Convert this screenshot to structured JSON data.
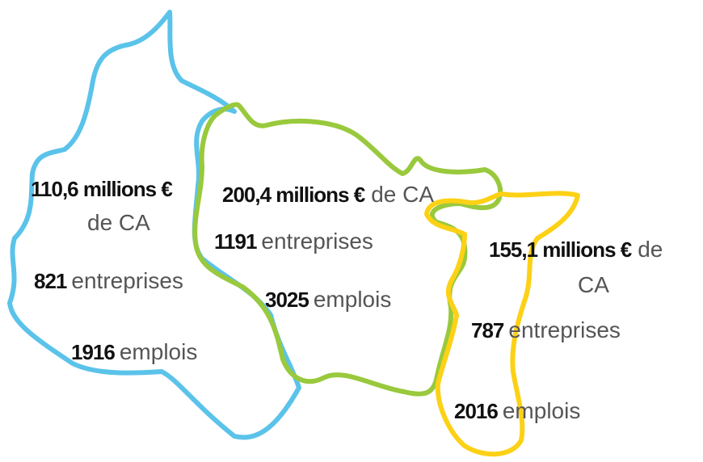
{
  "regions": [
    {
      "revenue": "110,6 millions €",
      "revenue_unit": "de CA",
      "companies": "821",
      "companies_label": "entreprises",
      "jobs": "1916",
      "jobs_label": "emplois"
    },
    {
      "revenue": "200,4 millions €",
      "revenue_unit": "de CA",
      "companies": "1191",
      "companies_label": "entreprises",
      "jobs": "3025",
      "jobs_label": "emplois"
    },
    {
      "revenue": "155,1 millions €",
      "revenue_unit_lines": [
        "de",
        "CA"
      ],
      "companies": "787",
      "companies_label": "entreprises",
      "jobs": "2016",
      "jobs_label": "emplois"
    }
  ]
}
